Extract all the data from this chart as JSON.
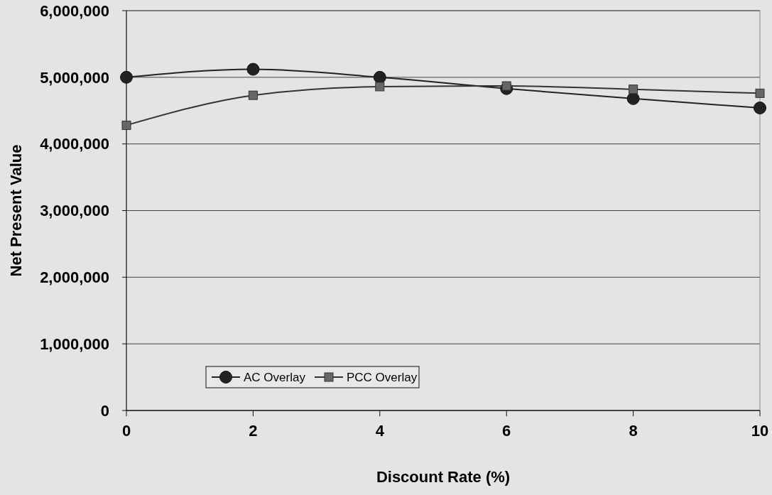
{
  "chart_data": {
    "type": "line",
    "xlabel": "Discount Rate (%)",
    "ylabel": "Net Present Value",
    "x": [
      0,
      2,
      4,
      6,
      8,
      10
    ],
    "series": [
      {
        "name": "AC Overlay",
        "color": "#222222",
        "marker": "circle",
        "values": [
          5000000,
          5120000,
          5000000,
          4830000,
          4680000,
          4540000
        ]
      },
      {
        "name": "PCC Overlay",
        "color": "#333333",
        "marker": "square",
        "values": [
          4280000,
          4730000,
          4860000,
          4870000,
          4820000,
          4760000
        ]
      }
    ],
    "xlim": [
      0,
      10
    ],
    "xticks": [
      0,
      2,
      4,
      6,
      8,
      10
    ],
    "ylim": [
      0,
      6000000
    ],
    "yticks": [
      {
        "value": 0,
        "label": "0"
      },
      {
        "value": 1000000,
        "label": "1,000,000"
      },
      {
        "value": 2000000,
        "label": "2,000,000"
      },
      {
        "value": 3000000,
        "label": "3,000,000"
      },
      {
        "value": 4000000,
        "label": "4,000,000"
      },
      {
        "value": 5000000,
        "label": "5,000,000"
      },
      {
        "value": 6000000,
        "label": "6,000,000"
      }
    ],
    "grid": "y",
    "legend": "bottom left",
    "line_style": "solid"
  }
}
